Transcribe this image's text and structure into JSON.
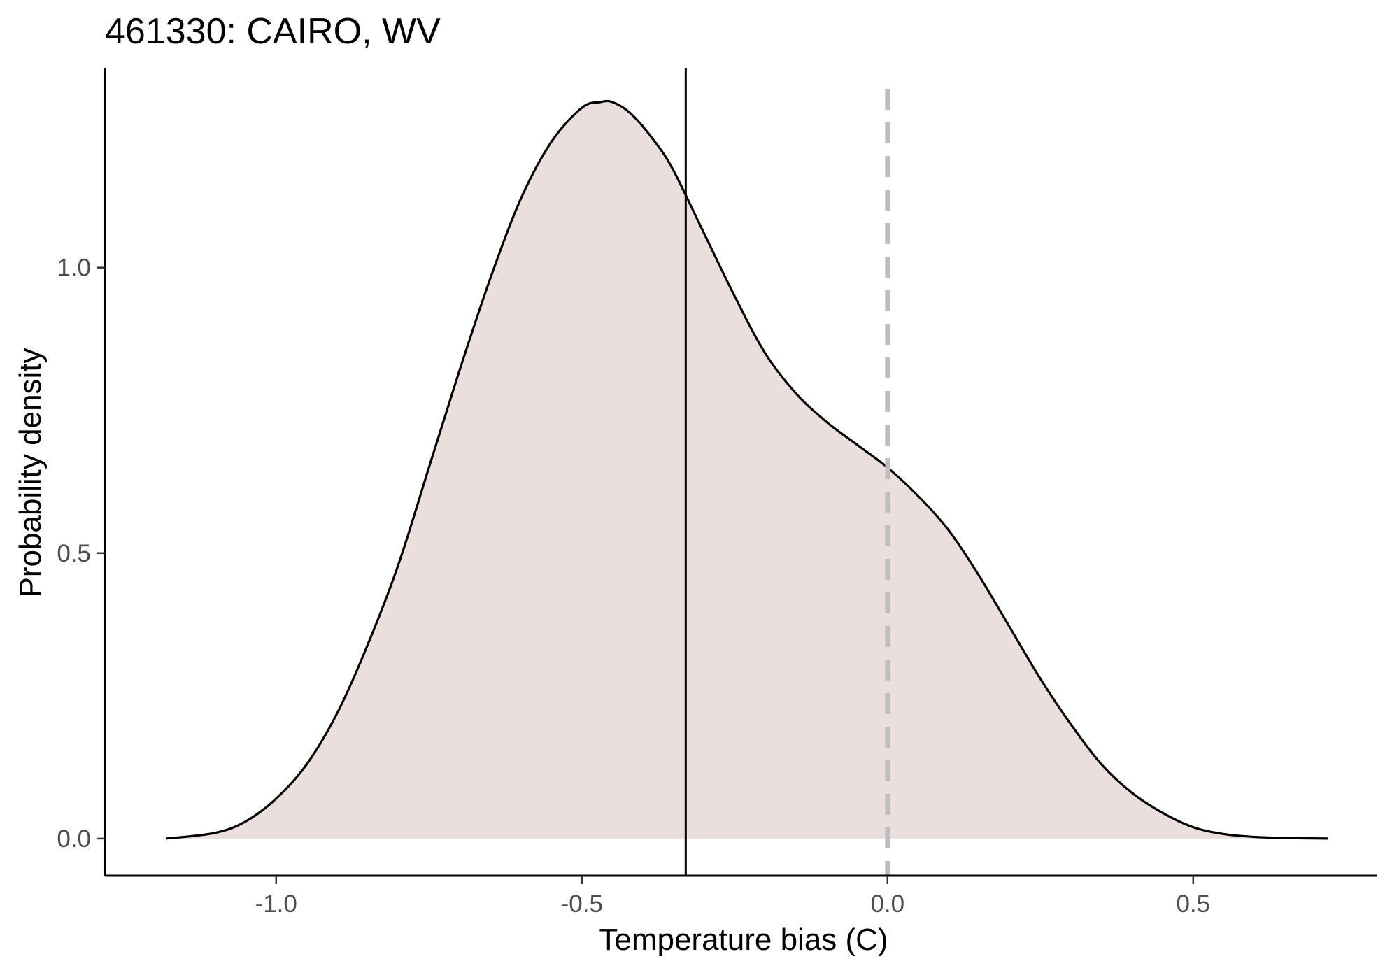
{
  "chart_data": {
    "type": "area",
    "title": "461330: CAIRO, WV",
    "xlabel": "Temperature bias (C)",
    "ylabel": "Probability density",
    "xlim": [
      -1.28,
      0.8
    ],
    "ylim": [
      -0.065,
      1.35
    ],
    "x_ticks": [
      {
        "value": -1.0,
        "label": "-1.0"
      },
      {
        "value": -0.5,
        "label": "-0.5"
      },
      {
        "value": 0.0,
        "label": "0.0"
      },
      {
        "value": 0.5,
        "label": "0.5"
      }
    ],
    "y_ticks": [
      {
        "value": 0.0,
        "label": "0.0"
      },
      {
        "value": 0.5,
        "label": "0.5"
      },
      {
        "value": 1.0,
        "label": "1.0"
      }
    ],
    "grid": false,
    "legend": "none",
    "fill_color": "#eadfdc",
    "line_color": "#000000",
    "density": {
      "x": [
        -1.18,
        -1.1,
        -1.05,
        -1.0,
        -0.95,
        -0.9,
        -0.85,
        -0.8,
        -0.75,
        -0.7,
        -0.65,
        -0.6,
        -0.55,
        -0.5,
        -0.47,
        -0.45,
        -0.42,
        -0.38,
        -0.35,
        -0.3,
        -0.25,
        -0.2,
        -0.15,
        -0.1,
        -0.05,
        0.0,
        0.05,
        0.1,
        0.15,
        0.2,
        0.25,
        0.3,
        0.35,
        0.4,
        0.45,
        0.5,
        0.55,
        0.6,
        0.65,
        0.72
      ],
      "y": [
        0.0,
        0.01,
        0.03,
        0.07,
        0.13,
        0.22,
        0.34,
        0.48,
        0.65,
        0.82,
        0.98,
        1.12,
        1.22,
        1.28,
        1.29,
        1.29,
        1.27,
        1.22,
        1.17,
        1.06,
        0.95,
        0.85,
        0.78,
        0.73,
        0.69,
        0.65,
        0.6,
        0.54,
        0.46,
        0.37,
        0.28,
        0.2,
        0.13,
        0.08,
        0.045,
        0.02,
        0.008,
        0.003,
        0.001,
        0.0
      ]
    },
    "mean_line": {
      "x": -0.33,
      "style": "solid",
      "color": "#000000"
    },
    "reference_line": {
      "x": 0.0,
      "style": "dashed",
      "color": "#bebebe"
    }
  }
}
